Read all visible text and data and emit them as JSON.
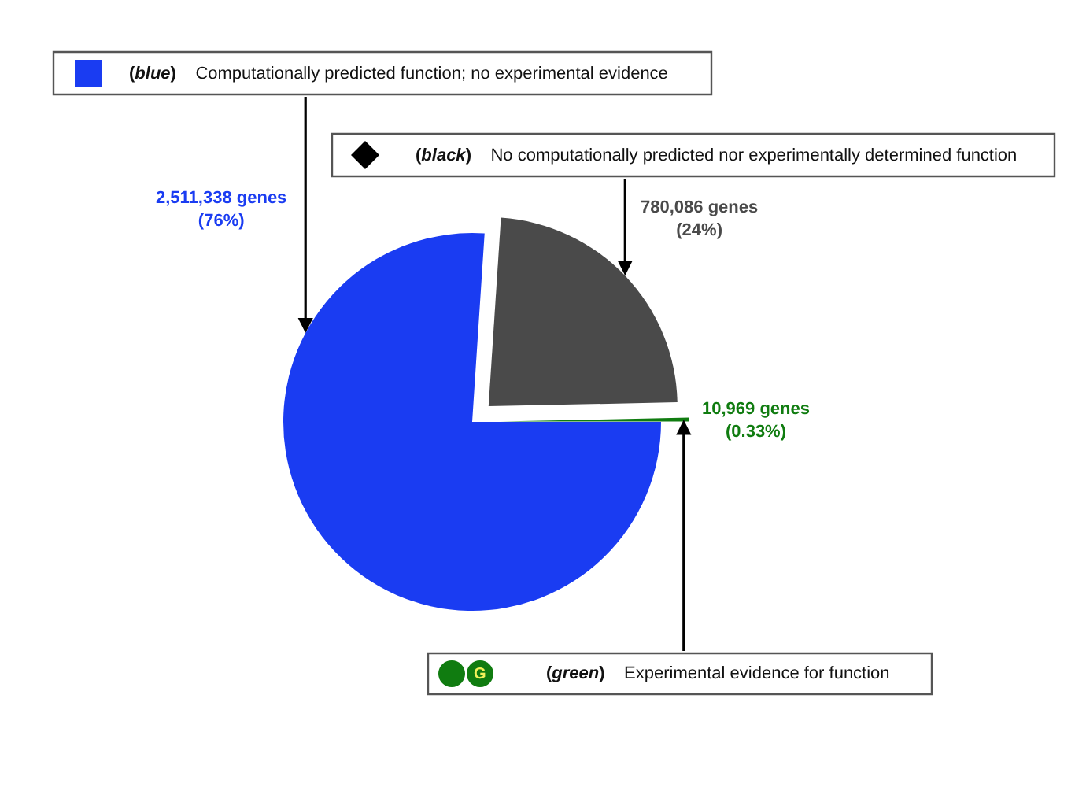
{
  "chart_data": {
    "type": "pie",
    "categories": [
      "(blue) Computationally predicted function; no experimental evidence",
      "(black) No computationally predicted nor experimentally determined function",
      "(green) Experimental evidence for function"
    ],
    "values": [
      2511338,
      780086,
      10969
    ],
    "colors": [
      "#1a3cf2",
      "#4a4a4a",
      "#107c10"
    ],
    "value_labels": [
      "2,511,338 genes\n(76%)",
      "780,086 genes\n(24%)",
      "10,969 genes\n(0.33%)"
    ],
    "annotations": [
      "G"
    ]
  }
}
